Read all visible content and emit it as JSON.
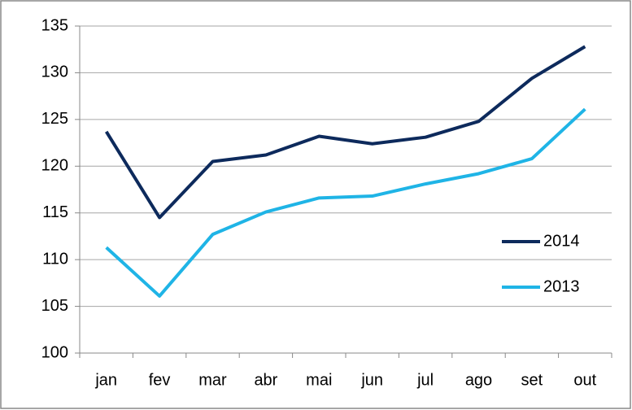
{
  "chart_data": {
    "type": "line",
    "categories": [
      "jan",
      "fev",
      "mar",
      "abr",
      "mai",
      "jun",
      "jul",
      "ago",
      "set",
      "out"
    ],
    "series": [
      {
        "name": "2014",
        "color": "#0d2a5c",
        "values": [
          123.7,
          114.5,
          120.5,
          121.2,
          123.2,
          122.4,
          123.1,
          124.8,
          129.4,
          132.8
        ]
      },
      {
        "name": "2013",
        "color": "#1fb4e6",
        "values": [
          111.3,
          106.1,
          112.7,
          115.1,
          116.6,
          116.8,
          118.1,
          119.2,
          120.8,
          126.1
        ]
      }
    ],
    "ylim": [
      100,
      135
    ],
    "yticks": [
      100,
      105,
      110,
      115,
      120,
      125,
      130,
      135
    ],
    "grid": true,
    "legend": "right"
  }
}
